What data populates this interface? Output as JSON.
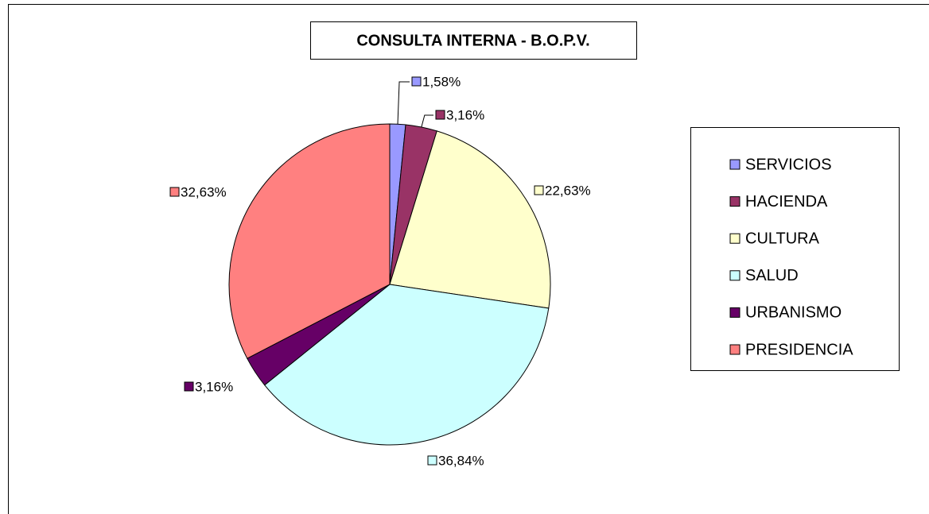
{
  "chart_data": {
    "type": "pie",
    "title": "CONSULTA INTERNA - B.O.P.V.",
    "categories": [
      "SERVICIOS",
      "HACIENDA",
      "CULTURA",
      "SALUD",
      "URBANISMO",
      "PRESIDENCIA"
    ],
    "values": [
      1.58,
      3.16,
      22.63,
      36.84,
      3.16,
      32.63
    ],
    "value_labels": [
      "1,58%",
      "3,16%",
      "22,63%",
      "36,84%",
      "3,16%",
      "32,63%"
    ],
    "colors": [
      "#9999ff",
      "#993366",
      "#ffffcc",
      "#ccffff",
      "#660066",
      "#ff8080"
    ],
    "legend": "right"
  }
}
